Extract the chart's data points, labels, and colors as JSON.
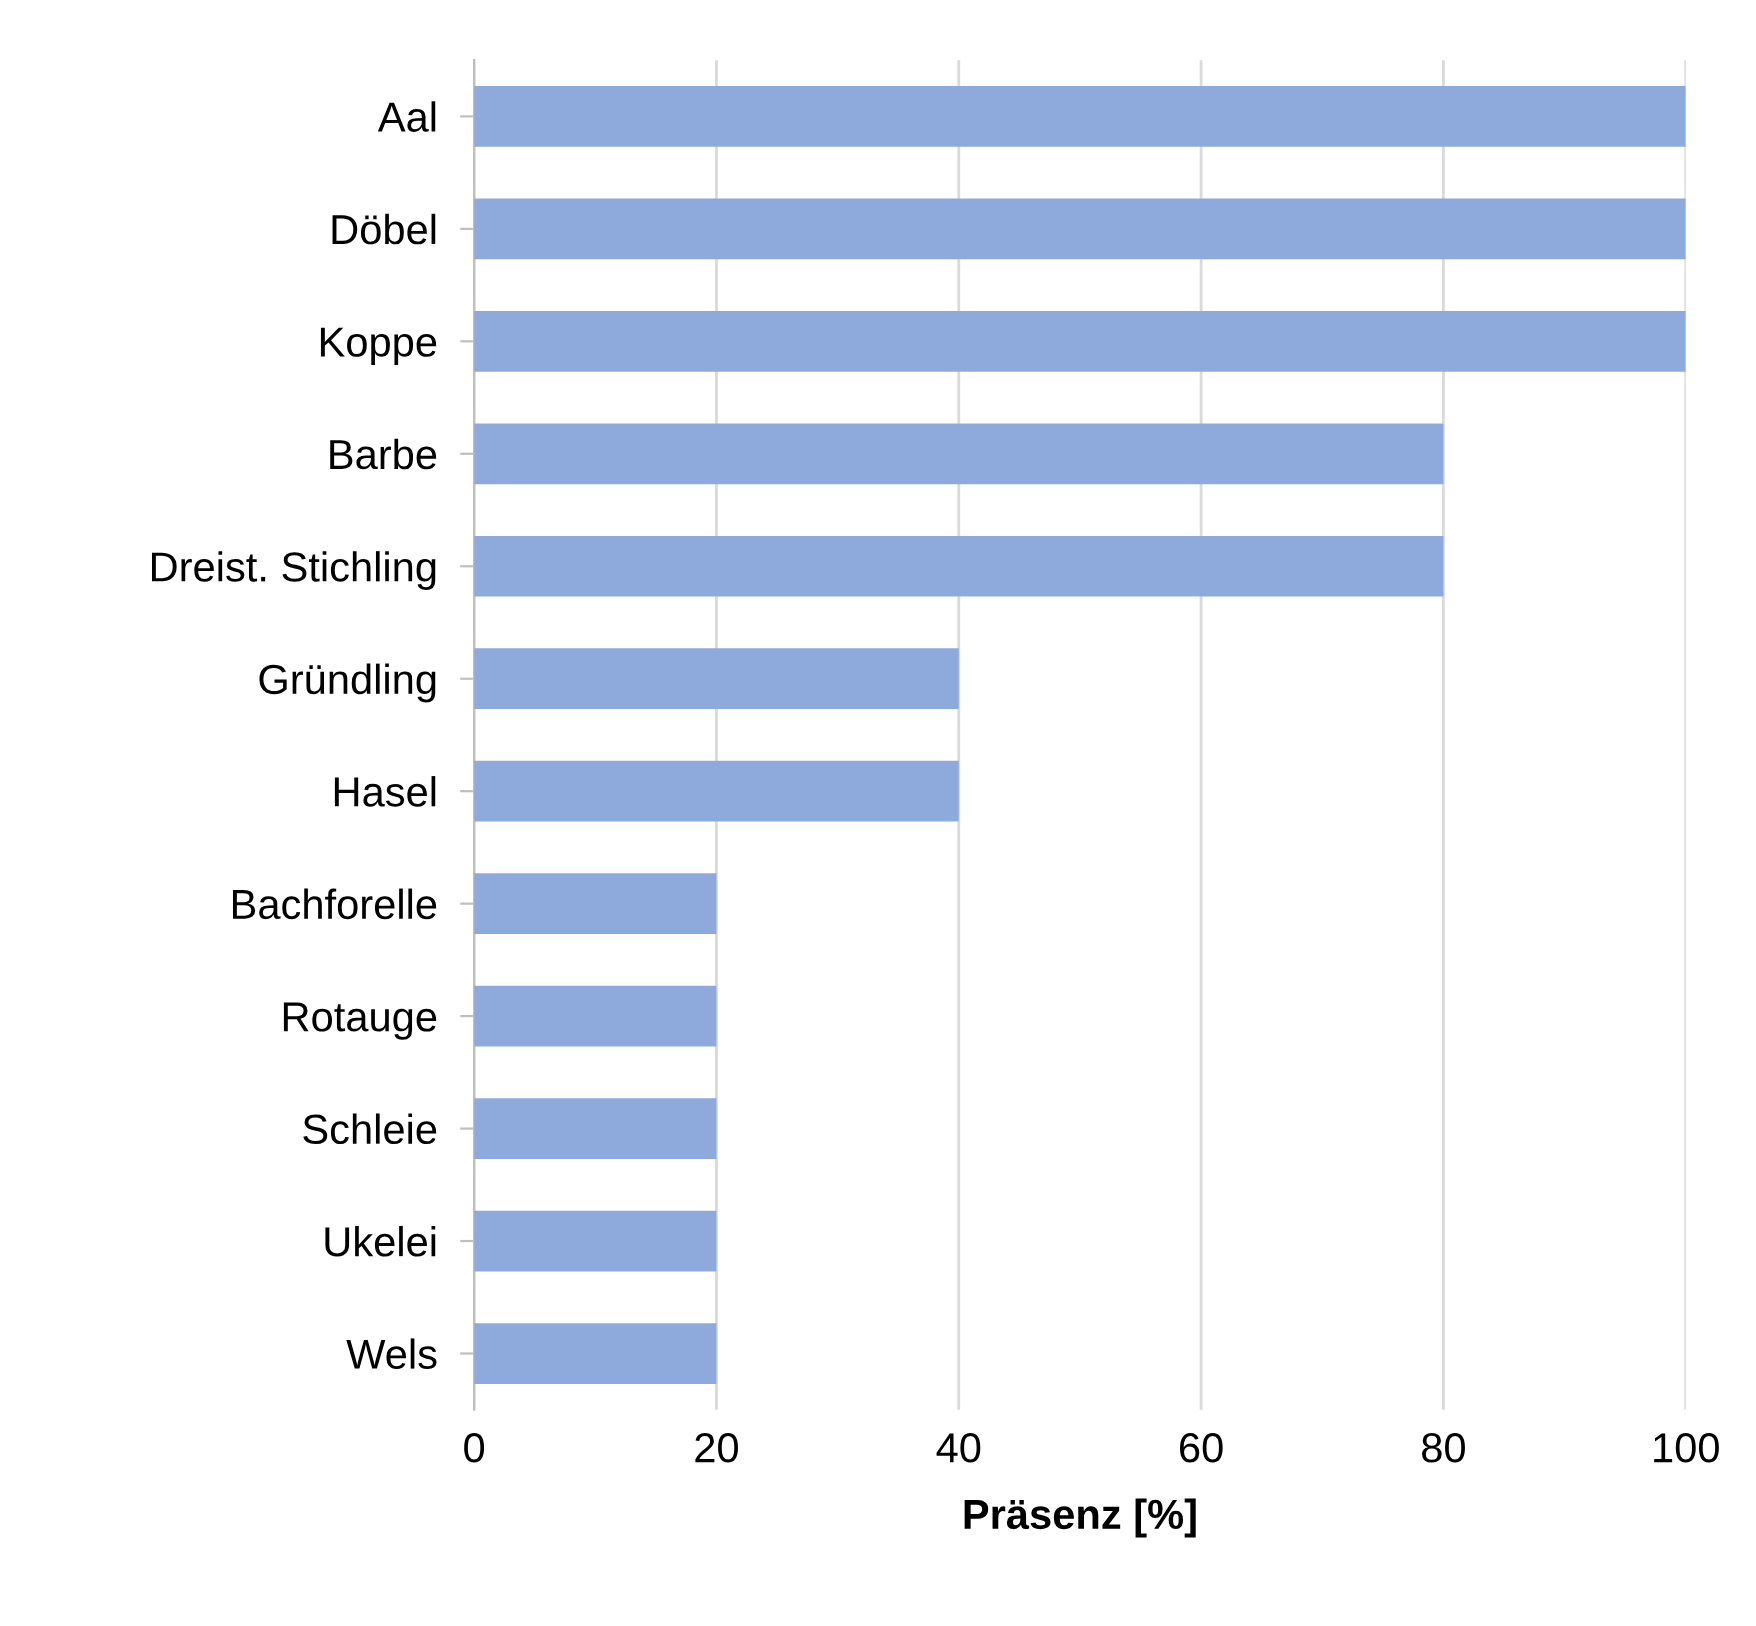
{
  "chart_data": {
    "type": "bar",
    "orientation": "horizontal",
    "xlabel": "Präsenz [%]",
    "categories": [
      "Aal",
      "Döbel",
      "Koppe",
      "Barbe",
      "Dreist. Stichling",
      "Gründling",
      "Hasel",
      "Bachforelle",
      "Rotauge",
      "Schleie",
      "Ukelei",
      "Wels"
    ],
    "values": [
      100,
      100,
      100,
      80,
      80,
      40,
      40,
      20,
      20,
      20,
      20,
      20
    ],
    "color": "#8eaadc",
    "xlim": [
      0,
      100
    ],
    "xticks": [
      0,
      20,
      40,
      60,
      80,
      100
    ],
    "grid": "x",
    "legend": false
  }
}
